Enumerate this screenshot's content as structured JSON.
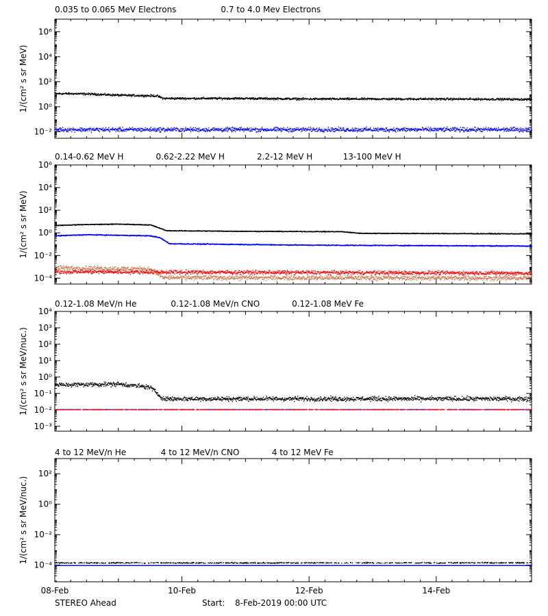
{
  "colors": {
    "black": "#000000",
    "blue": "#0000ff",
    "tan": "#c87850",
    "red": "#ff0000"
  },
  "x_axis": {
    "start_day": 8,
    "end_day": 15.5,
    "major_ticks": [
      8,
      10,
      12,
      14
    ],
    "tick_labels": [
      "08-Feb",
      "10-Feb",
      "12-Feb",
      "14-Feb"
    ]
  },
  "footer": {
    "spacecraft": "STEREO Ahead",
    "start_label": "Start:",
    "start_value": "8-Feb-2019 00:00 UTC"
  },
  "chart_data": [
    {
      "type": "scatter",
      "id": "electrons",
      "ylabel": "1/(cm² s sr MeV)",
      "ylim": [
        0.003,
        10000000
      ],
      "log": true,
      "y_ticks": [
        0.01,
        1,
        100,
        10000,
        1000000
      ],
      "y_tick_labels": [
        "10⁻²",
        "10⁰",
        "10²",
        "10⁴",
        "10⁶"
      ],
      "legend": [
        {
          "label": "0.035 to 0.065 MeV Electrons",
          "color": "#000000"
        },
        {
          "label": "0.7 to 4.0 Mev Electrons",
          "color": "#0000ff"
        }
      ],
      "series": [
        {
          "color": "#000000",
          "profile": [
            [
              8,
              12
            ],
            [
              8.3,
              12
            ],
            [
              8.6,
              11
            ],
            [
              9,
              9
            ],
            [
              9.6,
              8
            ],
            [
              9.7,
              5
            ],
            [
              11,
              5
            ],
            [
              12,
              4.5
            ],
            [
              14,
              4.5
            ],
            [
              15.5,
              4.2
            ]
          ],
          "scatter": 0.12,
          "sparse": false
        },
        {
          "color": "#0000ff",
          "profile": [
            [
              8,
              0.016
            ],
            [
              15.5,
              0.016
            ]
          ],
          "scatter": 0.25,
          "sparse": false
        }
      ]
    },
    {
      "type": "scatter",
      "id": "protons",
      "ylabel": "1/(cm² s sr MeV)",
      "ylim": [
        3e-05,
        1000000
      ],
      "log": true,
      "y_ticks": [
        0.0001,
        0.01,
        1,
        100,
        10000,
        1000000
      ],
      "y_tick_labels": [
        "10⁻⁴",
        "10⁻²",
        "10⁰",
        "10²",
        "10⁴",
        "10⁶"
      ],
      "legend": [
        {
          "label": "0.14-0.62 MeV H",
          "color": "#000000"
        },
        {
          "label": "0.62-2.22 MeV H",
          "color": "#0000ff"
        },
        {
          "label": "2.2-12 MeV H",
          "color": "#c87850"
        },
        {
          "label": "13-100 MeV H",
          "color": "#ff0000"
        }
      ],
      "series": [
        {
          "color": "#000000",
          "profile": [
            [
              8,
              5
            ],
            [
              8.5,
              6
            ],
            [
              9,
              6.5
            ],
            [
              9.5,
              5.5
            ],
            [
              9.6,
              3.5
            ],
            [
              9.75,
              1.7
            ],
            [
              11,
              1.5
            ],
            [
              12.5,
              1.4
            ],
            [
              12.8,
              1.0
            ],
            [
              15.5,
              0.9
            ]
          ],
          "scatter": 0.05,
          "sparse": false
        },
        {
          "color": "#0000ff",
          "profile": [
            [
              8,
              0.6
            ],
            [
              8.5,
              0.75
            ],
            [
              9.5,
              0.6
            ],
            [
              9.65,
              0.4
            ],
            [
              9.8,
              0.12
            ],
            [
              12,
              0.09
            ],
            [
              15.5,
              0.075
            ]
          ],
          "scatter": 0.06,
          "sparse": false
        },
        {
          "color": "#c87850",
          "profile": [
            [
              8,
              0.0009
            ],
            [
              9.5,
              0.0007
            ],
            [
              9.7,
              0.00012
            ],
            [
              15.5,
              0.00011
            ]
          ],
          "scatter": 0.3,
          "sparse": false
        },
        {
          "color": "#ff0000",
          "profile": [
            [
              8,
              0.0004
            ],
            [
              15.5,
              0.0003
            ]
          ],
          "scatter": 0.25,
          "sparse": false
        }
      ]
    },
    {
      "type": "scatter",
      "id": "heavy-low",
      "ylabel": "1/(cm² s sr MeV/nuc.)",
      "ylim": [
        0.0005,
        10000
      ],
      "log": true,
      "y_ticks": [
        0.001,
        0.01,
        0.1,
        1,
        10,
        100,
        1000,
        10000
      ],
      "y_tick_labels": [
        "10⁻³",
        "10⁻²",
        "10⁻¹",
        "10⁰",
        "10¹",
        "10²",
        "10³",
        "10⁴"
      ],
      "legend": [
        {
          "label": "0.12-1.08 MeV/n He",
          "color": "#000000"
        },
        {
          "label": "0.12-1.08 MeV/n CNO",
          "color": "#0000ff"
        },
        {
          "label": "0.12-1.08 MeV Fe",
          "color": "#ff0000"
        }
      ],
      "series": [
        {
          "color": "#000000",
          "profile": [
            [
              8,
              0.35
            ],
            [
              9,
              0.4
            ],
            [
              9.5,
              0.25
            ],
            [
              9.7,
              0.05
            ],
            [
              15.5,
              0.05
            ]
          ],
          "scatter": 0.2,
          "sparse": false
        },
        {
          "color": "#0000ff",
          "profile": [
            [
              8,
              0.011
            ],
            [
              15.5,
              0.011
            ]
          ],
          "scatter": 0.0,
          "sparse": true
        },
        {
          "color": "#ff0000",
          "profile": [
            [
              8,
              0.011
            ],
            [
              15.5,
              0.011
            ]
          ],
          "scatter": 0.0,
          "sparse": true
        }
      ]
    },
    {
      "type": "scatter",
      "id": "heavy-high",
      "ylabel": "1/(cm² s sr MeV/nuc.)",
      "ylim": [
        8e-06,
        1000
      ],
      "log": true,
      "y_ticks": [
        0.0001,
        0.01,
        1,
        100
      ],
      "y_tick_labels": [
        "10⁻⁴",
        "10⁻²",
        "10⁰",
        "10²"
      ],
      "legend": [
        {
          "label": "4 to 12 MeV/n He",
          "color": "#000000"
        },
        {
          "label": "4 to 12 MeV/n CNO",
          "color": "#0000ff"
        },
        {
          "label": "4 to 12 MeV Fe",
          "color": "#ff0000"
        }
      ],
      "series": [
        {
          "color": "#000000",
          "profile": [
            [
              8,
              0.00015
            ],
            [
              15.5,
              0.00015
            ]
          ],
          "scatter": 0.05,
          "sparse": true
        },
        {
          "color": "#0000ff",
          "profile": [
            [
              8,
              0.0001
            ],
            [
              15.5,
              0.0001
            ]
          ],
          "scatter": 0.0,
          "sparse": false
        }
      ]
    }
  ]
}
